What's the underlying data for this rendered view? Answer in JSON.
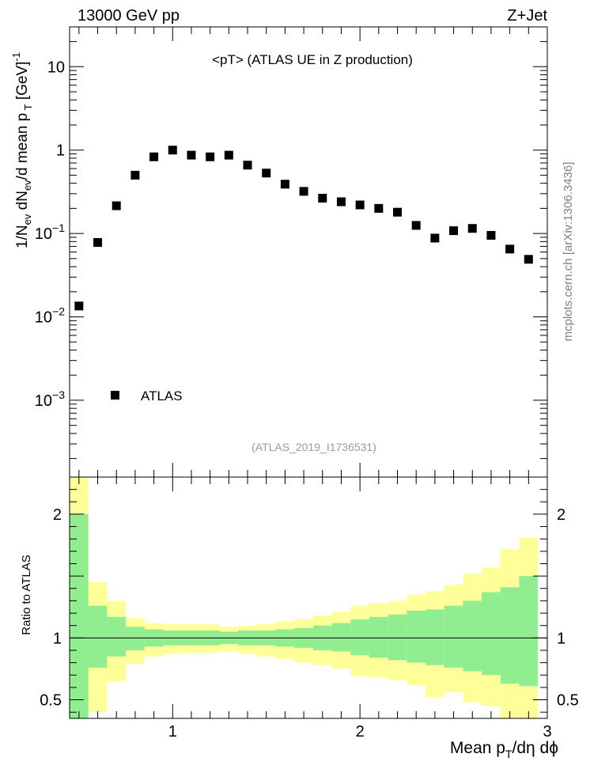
{
  "header": {
    "left": "13000 GeV pp",
    "right": "Z+Jet"
  },
  "plot_title": "<pT>  (ATLAS UE in Z production)",
  "legend": {
    "marker": "square",
    "label": "ATLAS"
  },
  "analysis_id": "(ATLAS_2019_I1736531)",
  "watermark": "mcplots.cern.ch [arXiv:1306.3436]",
  "colors": {
    "inner_band": "#90ee90",
    "outer_band": "#ffff99",
    "marker": "#000000"
  },
  "chart_data": [
    {
      "type": "scatter",
      "name": "main",
      "ylabel": "1/N_ev dN_ev/d mean p_T [GeV]^-1",
      "yscale": "log",
      "ylim": [
        0.00012,
        30
      ],
      "xlim": [
        0.45,
        3.0
      ],
      "yticks": [
        {
          "value": 10,
          "label": "10"
        },
        {
          "value": 1,
          "label": "1"
        },
        {
          "value": 0.1,
          "label": "10",
          "exp": "−1"
        },
        {
          "value": 0.01,
          "label": "10",
          "exp": "−2"
        },
        {
          "value": 0.001,
          "label": "10",
          "exp": "−3"
        }
      ],
      "series": [
        {
          "name": "ATLAS",
          "x": [
            0.5,
            0.6,
            0.7,
            0.8,
            0.9,
            1.0,
            1.1,
            1.2,
            1.3,
            1.4,
            1.5,
            1.6,
            1.7,
            1.8,
            1.9,
            2.0,
            2.1,
            2.2,
            2.3,
            2.4,
            2.5,
            2.6,
            2.7,
            2.8,
            2.9
          ],
          "y": [
            0.0135,
            0.078,
            0.215,
            0.5,
            0.83,
            1.0,
            0.87,
            0.83,
            0.87,
            0.66,
            0.53,
            0.39,
            0.32,
            0.265,
            0.24,
            0.22,
            0.2,
            0.18,
            0.125,
            0.088,
            0.108,
            0.115,
            0.095,
            0.065,
            0.049
          ]
        }
      ]
    },
    {
      "type": "area",
      "name": "ratio",
      "ylabel": "Ratio to ATLAS",
      "xlabel": "Mean p_T/dη dϕ",
      "ylim": [
        0.35,
        2.3
      ],
      "xlim": [
        0.45,
        3.0
      ],
      "yticks": [
        {
          "value": 0.5,
          "label": "0.5"
        },
        {
          "value": 1,
          "label": "1"
        },
        {
          "value": 2,
          "label": "2"
        }
      ],
      "xticks": [
        {
          "value": 1,
          "label": "1"
        },
        {
          "value": 2,
          "label": "2"
        },
        {
          "value": 3,
          "label": "3"
        }
      ],
      "bin_edges": [
        0.45,
        0.55,
        0.65,
        0.75,
        0.85,
        0.95,
        1.05,
        1.15,
        1.25,
        1.35,
        1.45,
        1.55,
        1.65,
        1.75,
        1.85,
        1.95,
        2.05,
        2.15,
        2.25,
        2.35,
        2.45,
        2.55,
        2.65,
        2.75,
        2.85,
        2.95
      ],
      "inner_up": [
        2.0,
        1.26,
        1.17,
        1.09,
        1.07,
        1.06,
        1.06,
        1.06,
        1.05,
        1.06,
        1.06,
        1.07,
        1.08,
        1.1,
        1.12,
        1.15,
        1.17,
        1.19,
        1.22,
        1.23,
        1.26,
        1.3,
        1.37,
        1.41,
        1.5
      ],
      "inner_down": [
        0.35,
        0.76,
        0.85,
        0.9,
        0.93,
        0.94,
        0.94,
        0.94,
        0.95,
        0.94,
        0.94,
        0.93,
        0.92,
        0.9,
        0.89,
        0.86,
        0.84,
        0.82,
        0.8,
        0.78,
        0.76,
        0.73,
        0.7,
        0.63,
        0.61
      ],
      "outer_up": [
        2.3,
        1.45,
        1.3,
        1.16,
        1.12,
        1.11,
        1.11,
        1.11,
        1.09,
        1.1,
        1.11,
        1.13,
        1.15,
        1.18,
        1.21,
        1.26,
        1.28,
        1.3,
        1.35,
        1.38,
        1.43,
        1.52,
        1.57,
        1.72,
        1.81
      ],
      "outer_down": [
        0.35,
        0.4,
        0.65,
        0.79,
        0.85,
        0.87,
        0.88,
        0.88,
        0.89,
        0.87,
        0.85,
        0.83,
        0.8,
        0.78,
        0.75,
        0.69,
        0.68,
        0.66,
        0.62,
        0.52,
        0.56,
        0.48,
        0.45,
        0.35,
        0.35
      ],
      "reference": 1.0
    }
  ]
}
